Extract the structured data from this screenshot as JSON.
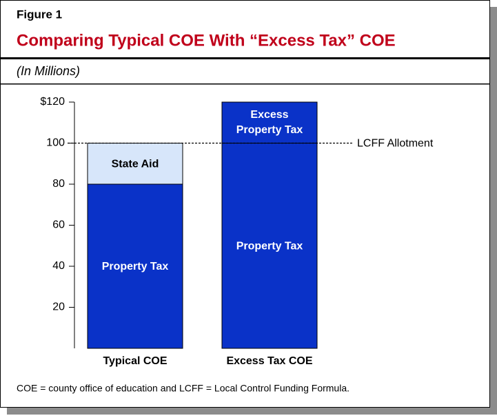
{
  "chart_data": {
    "type": "stacked_bar",
    "figure_label": "Figure 1",
    "title": "Comparing Typical COE With “Excess Tax” COE",
    "subtitle": "(In Millions)",
    "categories": [
      "Typical COE",
      "Excess Tax COE"
    ],
    "series": [
      {
        "name": "Property Tax",
        "color": "#0a32c8",
        "values": [
          80,
          100
        ]
      },
      {
        "name": "State Aid",
        "color": "#d7e6fa",
        "values": [
          20,
          null
        ]
      },
      {
        "name": "Excess Property Tax",
        "color": "#0a32c8",
        "values": [
          null,
          20
        ]
      }
    ],
    "ylim": [
      0,
      120
    ],
    "yticks": [
      20,
      40,
      60,
      80,
      100,
      {
        "value": 120,
        "label": "$120"
      }
    ],
    "reference_line": {
      "value": 100,
      "label": "LCFF Allotment"
    },
    "footnote": "COE = county office of education and LCFF = Local Control Funding Formula."
  }
}
